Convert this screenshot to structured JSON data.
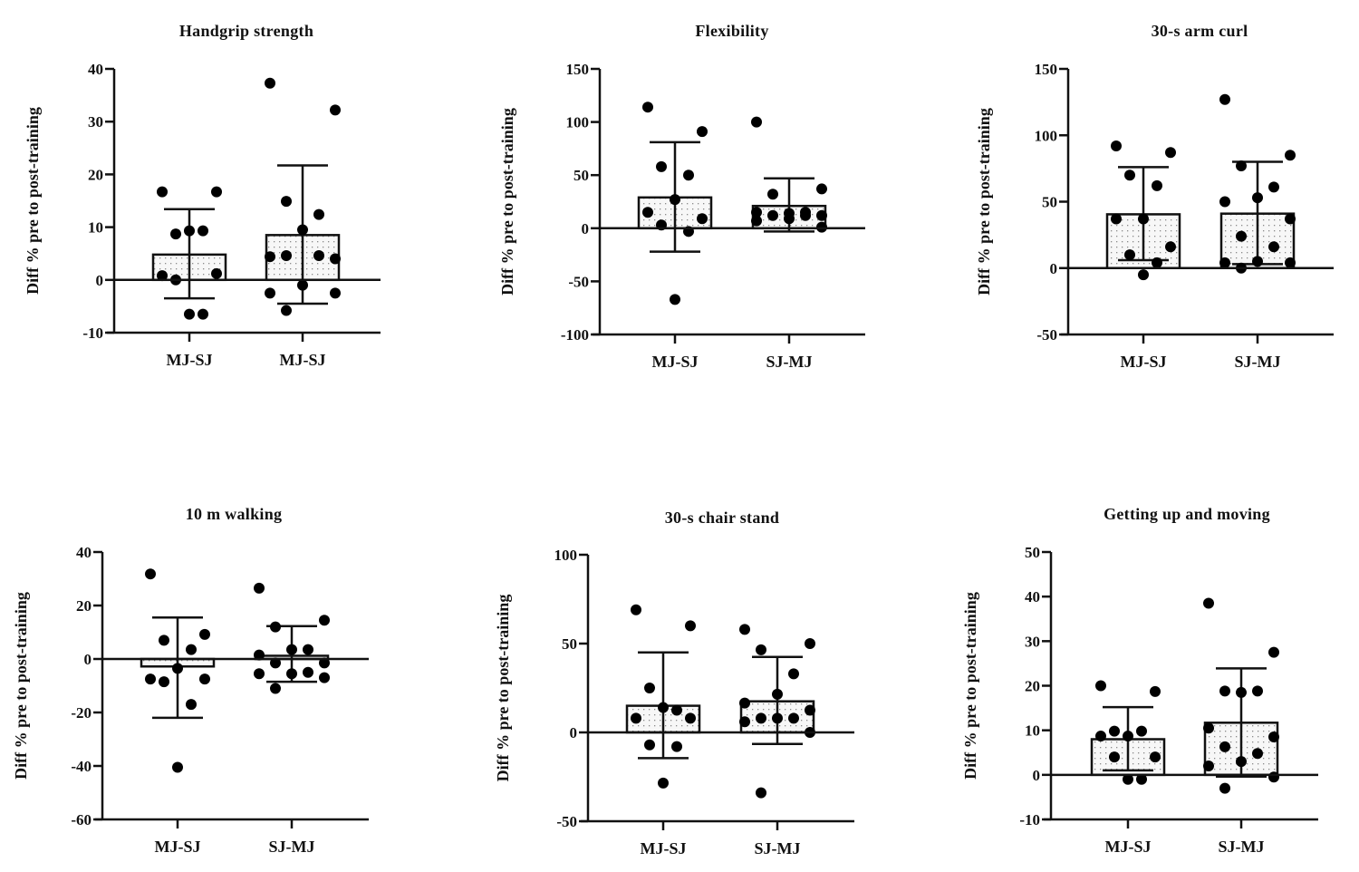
{
  "chart_data": [
    {
      "type": "bar",
      "title": "Handgrip strength",
      "ylabel": "Diff % pre to post-training",
      "xlabel": "",
      "categories": [
        "MJ-SJ",
        "MJ-SJ"
      ],
      "ylim": [
        -10,
        40
      ],
      "yticks": [
        -10,
        0,
        10,
        20,
        30,
        40
      ],
      "series": [
        {
          "name": "MJ-SJ",
          "mean": 4.8,
          "sd_low": -3.5,
          "sd_high": 13.4,
          "points": [
            16.7,
            16.7,
            8.7,
            9.3,
            9.3,
            0.8,
            1.2,
            0,
            -6.5,
            -6.5
          ]
        },
        {
          "name": "MJ-SJ",
          "mean": 8.5,
          "sd_low": -4.5,
          "sd_high": 21.7,
          "points": [
            37.3,
            32.2,
            14.9,
            12.4,
            9.5,
            4.4,
            4.0,
            4.6,
            4.6,
            -1.0,
            -2.5,
            -2.5,
            -5.8
          ]
        }
      ]
    },
    {
      "type": "bar",
      "title": "Flexibility",
      "ylabel": "Diff % pre to post-training",
      "xlabel": "",
      "categories": [
        "MJ-SJ",
        "SJ-MJ"
      ],
      "ylim": [
        -100,
        150
      ],
      "yticks": [
        -100,
        -50,
        0,
        50,
        100,
        150
      ],
      "series": [
        {
          "name": "MJ-SJ",
          "mean": 29,
          "sd_low": -22,
          "sd_high": 81,
          "points": [
            114,
            91,
            58,
            50,
            27,
            15,
            9,
            3,
            -3,
            -67
          ]
        },
        {
          "name": "SJ-MJ",
          "mean": 21,
          "sd_low": -3,
          "sd_high": 47,
          "points": [
            100,
            37,
            32,
            15,
            14,
            15,
            12,
            12,
            12,
            9,
            7,
            1
          ]
        }
      ]
    },
    {
      "type": "bar",
      "title": "30-s arm curl",
      "ylabel": "Diff % pre to post-training",
      "xlabel": "",
      "categories": [
        "MJ-SJ",
        "SJ-MJ"
      ],
      "ylim": [
        -50,
        150
      ],
      "yticks": [
        -50,
        0,
        50,
        100,
        150
      ],
      "series": [
        {
          "name": "MJ-SJ",
          "mean": 40.5,
          "sd_low": 6,
          "sd_high": 76,
          "points": [
            92,
            87,
            70,
            62,
            37,
            37,
            16,
            10,
            4,
            -5
          ]
        },
        {
          "name": "SJ-MJ",
          "mean": 41,
          "sd_low": 3,
          "sd_high": 80,
          "points": [
            127,
            85,
            77,
            61,
            53,
            50,
            37,
            24,
            16,
            5,
            4,
            4,
            0
          ]
        }
      ]
    },
    {
      "type": "bar",
      "title": "10 m walking",
      "ylabel": "Diff % pre to post-training",
      "xlabel": "",
      "categories": [
        "MJ-SJ",
        "SJ-MJ"
      ],
      "ylim": [
        -60,
        40
      ],
      "yticks": [
        -60,
        -40,
        -20,
        0,
        20,
        40
      ],
      "series": [
        {
          "name": "MJ-SJ",
          "mean": -2.8,
          "sd_low": -22,
          "sd_high": 15.5,
          "points": [
            31.8,
            9.2,
            7.0,
            3.5,
            -3.5,
            -7.5,
            -7.5,
            -8.5,
            -17,
            -40.5
          ]
        },
        {
          "name": "SJ-MJ",
          "mean": 1.2,
          "sd_low": -8.5,
          "sd_high": 12.3,
          "points": [
            26.5,
            14.5,
            12,
            3.5,
            3.5,
            1.5,
            -1.5,
            -1.5,
            -5,
            -5.5,
            -5.5,
            -7,
            -11
          ]
        }
      ]
    },
    {
      "type": "bar",
      "title": "30-s chair stand",
      "ylabel": "Diff % pre to post-training",
      "xlabel": "",
      "categories": [
        "MJ-SJ",
        "SJ-MJ"
      ],
      "ylim": [
        -50,
        100
      ],
      "yticks": [
        -50,
        0,
        50,
        100
      ],
      "series": [
        {
          "name": "MJ-SJ",
          "mean": 15,
          "sd_low": -14.5,
          "sd_high": 45,
          "points": [
            69,
            60,
            25,
            12.5,
            14,
            8,
            8,
            -7,
            -8,
            -28.5
          ]
        },
        {
          "name": "SJ-MJ",
          "mean": 17.5,
          "sd_low": -6.5,
          "sd_high": 42.5,
          "points": [
            58,
            50,
            46.5,
            33,
            21.5,
            16.5,
            12.5,
            8,
            8,
            8,
            6,
            0,
            -34
          ]
        }
      ]
    },
    {
      "type": "bar",
      "title": "Getting up and moving",
      "ylabel": "Diff % pre to post-training",
      "xlabel": "",
      "categories": [
        "MJ-SJ",
        "SJ-MJ"
      ],
      "ylim": [
        -10,
        50
      ],
      "yticks": [
        -10,
        0,
        10,
        20,
        30,
        40,
        50
      ],
      "series": [
        {
          "name": "MJ-SJ",
          "mean": 8,
          "sd_low": 1,
          "sd_high": 15.2,
          "points": [
            20,
            18.7,
            9.8,
            9.8,
            8.7,
            8.7,
            4,
            4,
            -1,
            -1
          ]
        },
        {
          "name": "SJ-MJ",
          "mean": 11.7,
          "sd_low": -0.4,
          "sd_high": 23.9,
          "points": [
            38.5,
            27.5,
            18.8,
            18.8,
            18.5,
            10.5,
            8.5,
            6.3,
            4.8,
            3,
            2,
            -0.5,
            -3
          ]
        }
      ]
    }
  ]
}
